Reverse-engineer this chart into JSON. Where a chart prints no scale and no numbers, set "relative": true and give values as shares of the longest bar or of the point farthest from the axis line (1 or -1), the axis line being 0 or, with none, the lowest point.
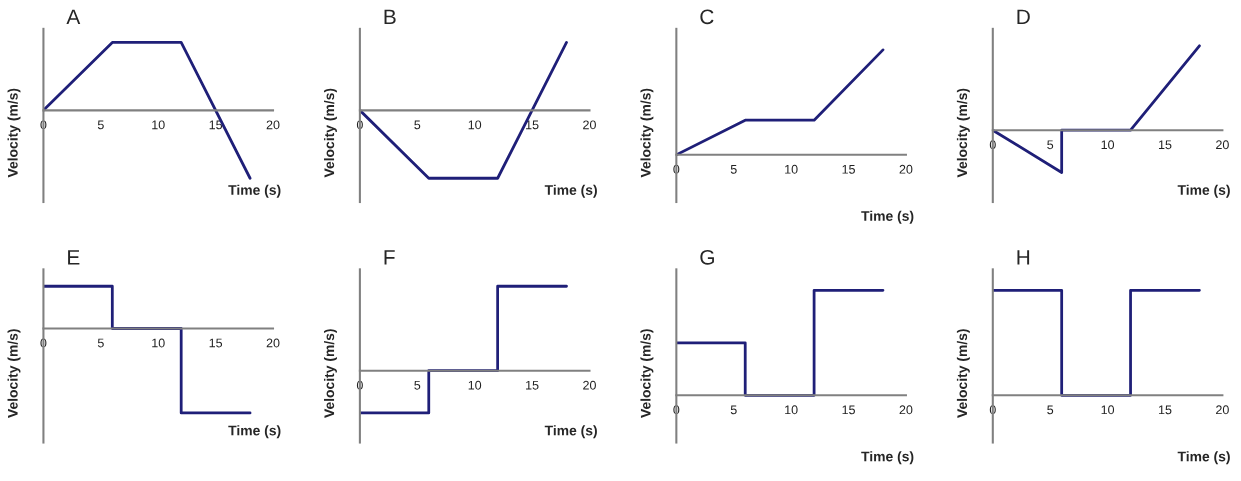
{
  "chart_data": [
    {
      "type": "line",
      "title": "A",
      "xlabel": "Time (s)",
      "ylabel": "Velocity (m/s)",
      "relative": true,
      "xlim": [
        0,
        20
      ],
      "xticks": [
        0,
        5,
        10,
        15,
        20
      ],
      "color": "#1f1f78",
      "x": [
        0,
        6,
        12,
        18
      ],
      "values": [
        0,
        1,
        1,
        -1
      ]
    },
    {
      "type": "line",
      "title": "B",
      "xlabel": "Time (s)",
      "ylabel": "Velocity (m/s)",
      "relative": true,
      "xlim": [
        0,
        20
      ],
      "xticks": [
        0,
        5,
        10,
        15,
        20
      ],
      "color": "#1f1f78",
      "x": [
        0,
        6,
        12,
        18
      ],
      "values": [
        0,
        -1,
        -1,
        1
      ]
    },
    {
      "type": "line",
      "title": "C",
      "xlabel": "Time (s)",
      "ylabel": "Velocity (m/s)",
      "relative": true,
      "xlim": [
        0,
        20
      ],
      "xticks": [
        0,
        5,
        10,
        15,
        20
      ],
      "color": "#1f1f78",
      "x": [
        0,
        6,
        12,
        18
      ],
      "values": [
        0,
        0.33,
        0.33,
        1
      ]
    },
    {
      "type": "line",
      "title": "D",
      "xlabel": "Time (s)",
      "ylabel": "Velocity (m/s)",
      "relative": true,
      "xlim": [
        0,
        20
      ],
      "xticks": [
        0,
        5,
        10,
        15,
        20
      ],
      "color": "#1f1f78",
      "x": [
        0,
        6,
        6,
        12,
        18
      ],
      "values": [
        0,
        -0.5,
        0,
        0,
        1
      ]
    },
    {
      "type": "step",
      "title": "E",
      "xlabel": "Time (s)",
      "ylabel": "Velocity (m/s)",
      "relative": true,
      "xlim": [
        0,
        20
      ],
      "xticks": [
        0,
        5,
        10,
        15,
        20
      ],
      "color": "#1f1f78",
      "x": [
        0,
        6,
        12,
        18
      ],
      "values": [
        0.5,
        0,
        -1,
        -1
      ]
    },
    {
      "type": "step",
      "title": "F",
      "xlabel": "Time (s)",
      "ylabel": "Velocity (m/s)",
      "relative": true,
      "xlim": [
        0,
        20
      ],
      "xticks": [
        0,
        5,
        10,
        15,
        20
      ],
      "color": "#1f1f78",
      "x": [
        0,
        6,
        12,
        18
      ],
      "values": [
        -0.5,
        0,
        1,
        1
      ]
    },
    {
      "type": "step",
      "title": "G",
      "xlabel": "Time (s)",
      "ylabel": "Velocity (m/s)",
      "relative": true,
      "xlim": [
        0,
        20
      ],
      "xticks": [
        0,
        5,
        10,
        15,
        20
      ],
      "color": "#1f1f78",
      "x": [
        0,
        6,
        12,
        18
      ],
      "values": [
        0.5,
        0,
        1,
        1
      ]
    },
    {
      "type": "step",
      "title": "H",
      "xlabel": "Time (s)",
      "ylabel": "Velocity (m/s)",
      "relative": true,
      "xlim": [
        0,
        20
      ],
      "xticks": [
        0,
        5,
        10,
        15,
        20
      ],
      "color": "#1f1f78",
      "x": [
        0,
        6,
        12,
        18
      ],
      "values": [
        1,
        0,
        1,
        1
      ]
    }
  ]
}
